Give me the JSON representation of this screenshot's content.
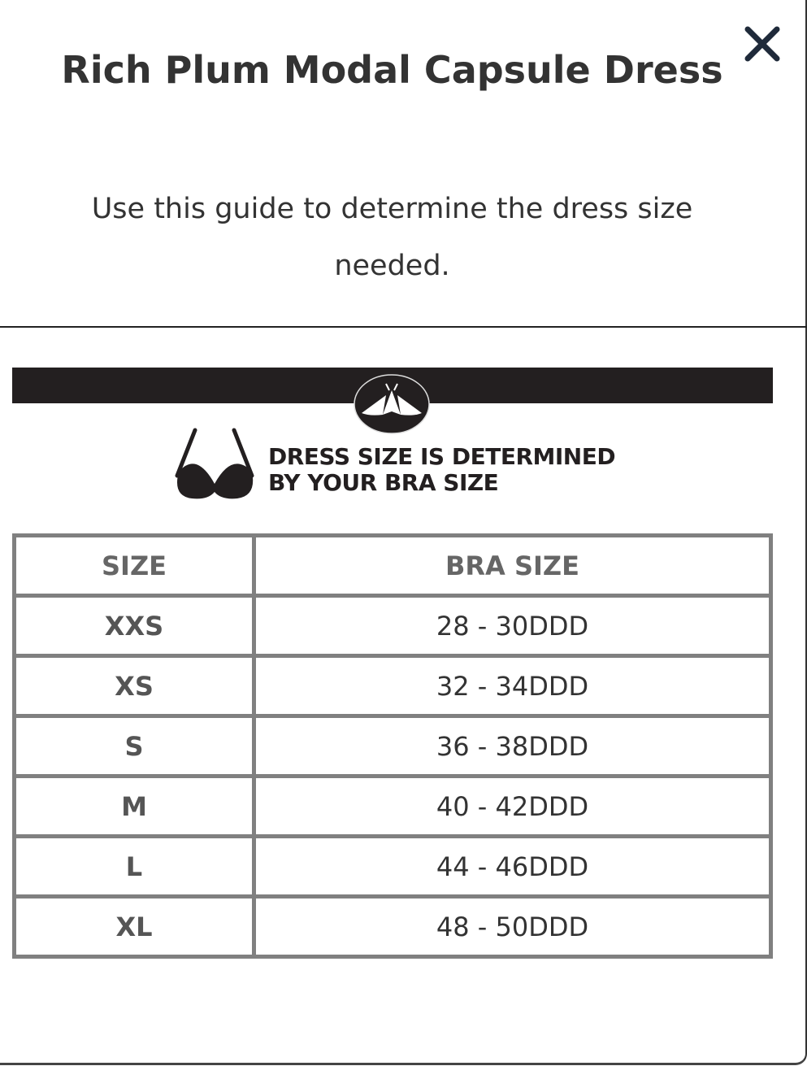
{
  "modal": {
    "title": "Rich Plum Modal Capsule Dress",
    "subtitle": "Use this guide to determine the dress size needed.",
    "close_icon": "close-x-icon"
  },
  "banner": {
    "logo_icon": "moth-logo-icon",
    "bra_icon": "bra-icon",
    "text_line1": "DRESS SIZE IS DETERMINED",
    "text_line2": "BY YOUR BRA SIZE"
  },
  "table": {
    "headers": [
      "SIZE",
      "BRA SIZE"
    ],
    "rows": [
      [
        "XXS",
        "28 - 30DDD"
      ],
      [
        "XS",
        "32 - 34DDD"
      ],
      [
        "S",
        "36 - 38DDD"
      ],
      [
        "M",
        "40 - 42DDD"
      ],
      [
        "L",
        "44 - 46DDD"
      ],
      [
        "XL",
        "48 - 50DDD"
      ]
    ]
  }
}
